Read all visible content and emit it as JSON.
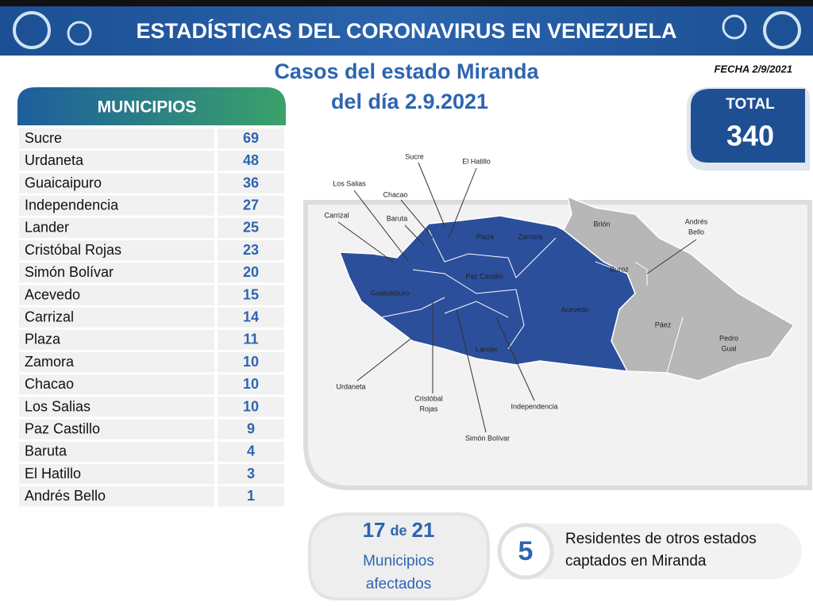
{
  "header": {
    "title": "ESTADÍSTICAS DEL CORONAVIRUS EN VENEZUELA"
  },
  "subtitle": [
    "Casos del estado Miranda",
    "del día 2.9.2021"
  ],
  "date": "FECHA 2/9/2021",
  "table": {
    "header": "MUNICIPIOS",
    "rows": [
      [
        "Sucre",
        69
      ],
      [
        "Urdaneta",
        48
      ],
      [
        "Guaicaipuro",
        36
      ],
      [
        "Independencia",
        27
      ],
      [
        "Lander",
        25
      ],
      [
        "Cristóbal Rojas",
        23
      ],
      [
        "Simón Bolívar",
        20
      ],
      [
        "Acevedo",
        15
      ],
      [
        "Carrizal",
        14
      ],
      [
        "Plaza",
        11
      ],
      [
        "Zamora",
        10
      ],
      [
        "Chacao",
        10
      ],
      [
        "Los Salias",
        10
      ],
      [
        "Paz Castillo",
        9
      ],
      [
        "Baruta",
        4
      ],
      [
        "El Hatillo",
        3
      ],
      [
        "Andrés Bello",
        1
      ]
    ]
  },
  "total": {
    "label": "TOTAL",
    "value": 340
  },
  "map": {
    "labels": [
      [
        "Sucre"
      ],
      [
        "El Hatillo"
      ],
      [
        "Los Salias"
      ],
      [
        "Chacao"
      ],
      [
        "Carrizal"
      ],
      [
        "Baruta"
      ],
      [
        "Plaza"
      ],
      [
        "Zamora"
      ],
      [
        "Brión"
      ],
      [
        "Andrés",
        "Bello"
      ],
      [
        "Buroz"
      ],
      [
        "Paz Castillo"
      ],
      [
        "Guaicaipuro"
      ],
      [
        "Acevedo"
      ],
      [
        "Páez"
      ],
      [
        "Pedro",
        "Gual"
      ],
      [
        "Lander"
      ],
      [
        "Urdaneta"
      ],
      [
        "Cristóbal",
        "Rojas"
      ],
      [
        "Independencia"
      ],
      [
        "Simón Bolívar"
      ]
    ]
  },
  "affected": {
    "count": 17,
    "of": "de",
    "total": 21,
    "label": [
      "Municipios",
      "afectados"
    ]
  },
  "residents": {
    "value": 5,
    "label": [
      "Residentes de otros estados",
      "captados en Miranda"
    ]
  }
}
